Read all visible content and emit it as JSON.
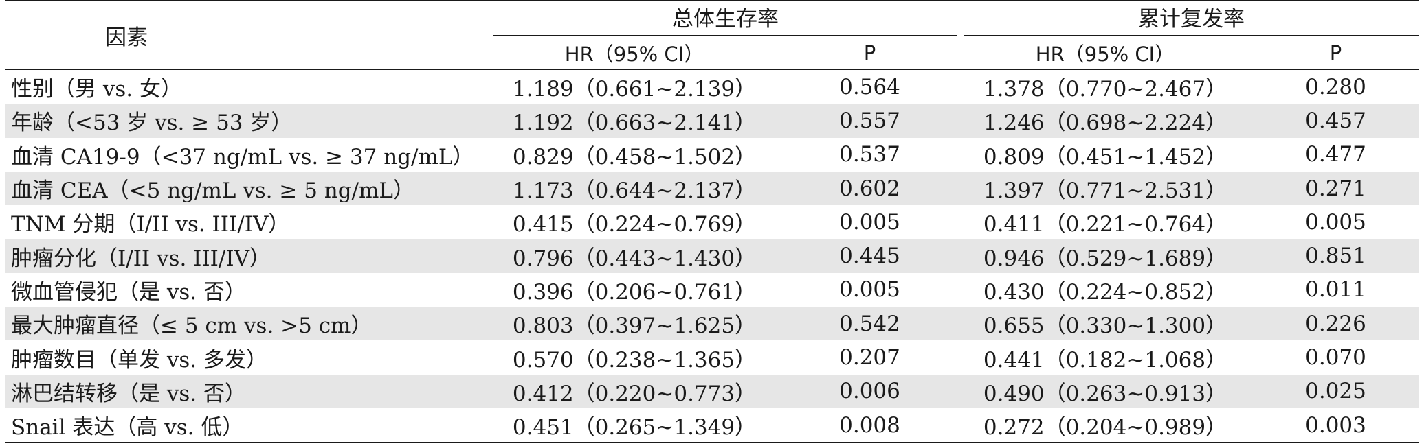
{
  "table": {
    "header": {
      "factor": "因素",
      "group_os": "总体生存率",
      "group_recurrence": "累计复发率",
      "hr_ci": "HR（95% CI）",
      "p": "P"
    },
    "rows": [
      {
        "factor": "性别（男 vs. 女）",
        "os_hr": "1.189（0.661~2.139）",
        "os_p": "0.564",
        "rec_hr": "1.378（0.770~2.467）",
        "rec_p": "0.280"
      },
      {
        "factor": "年龄（<53 岁 vs. ≥ 53 岁）",
        "os_hr": "1.192（0.663~2.141）",
        "os_p": "0.557",
        "rec_hr": "1.246（0.698~2.224）",
        "rec_p": "0.457"
      },
      {
        "factor": "血清 CA19-9（<37 ng/mL vs. ≥ 37 ng/mL）",
        "os_hr": "0.829（0.458~1.502）",
        "os_p": "0.537",
        "rec_hr": "0.809（0.451~1.452）",
        "rec_p": "0.477"
      },
      {
        "factor": "血清 CEA（<5 ng/mL vs. ≥ 5 ng/mL）",
        "os_hr": "1.173（0.644~2.137）",
        "os_p": "0.602",
        "rec_hr": "1.397（0.771~2.531）",
        "rec_p": "0.271"
      },
      {
        "factor": "TNM 分期（I/II vs. III/IV）",
        "os_hr": "0.415（0.224~0.769）",
        "os_p": "0.005",
        "rec_hr": "0.411（0.221~0.764）",
        "rec_p": "0.005"
      },
      {
        "factor": "肿瘤分化（I/II vs. III/IV）",
        "os_hr": "0.796（0.443~1.430）",
        "os_p": "0.445",
        "rec_hr": "0.946（0.529~1.689）",
        "rec_p": "0.851"
      },
      {
        "factor": "微血管侵犯（是 vs. 否）",
        "os_hr": "0.396（0.206~0.761）",
        "os_p": "0.005",
        "rec_hr": "0.430（0.224~0.852）",
        "rec_p": "0.011"
      },
      {
        "factor": "最大肿瘤直径（≤ 5 cm vs. >5 cm）",
        "os_hr": "0.803（0.397~1.625）",
        "os_p": "0.542",
        "rec_hr": "0.655（0.330~1.300）",
        "rec_p": "0.226"
      },
      {
        "factor": "肿瘤数目（单发 vs. 多发）",
        "os_hr": "0.570（0.238~1.365）",
        "os_p": "0.207",
        "rec_hr": "0.441（0.182~1.068）",
        "rec_p": "0.070"
      },
      {
        "factor": "淋巴结转移（是 vs. 否）",
        "os_hr": "0.412（0.220~0.773）",
        "os_p": "0.006",
        "rec_hr": "0.490（0.263~0.913）",
        "rec_p": "0.025"
      },
      {
        "factor": "Snail 表达（高 vs. 低）",
        "os_hr": "0.451（0.265~1.349）",
        "os_p": "0.008",
        "rec_hr": "0.272（0.204~0.989）",
        "rec_p": "0.003"
      }
    ]
  }
}
